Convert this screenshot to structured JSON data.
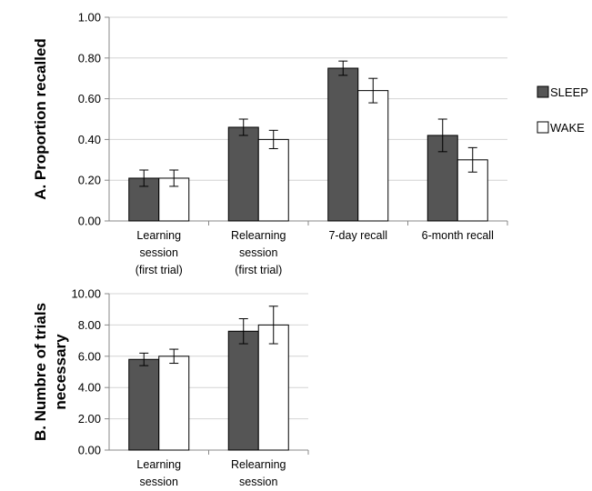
{
  "chart_data": [
    {
      "type": "bar",
      "ylabel": "A. Proportion recalled",
      "ylim": [
        0,
        1
      ],
      "yticks": [
        "0.00",
        "0.20",
        "0.40",
        "0.60",
        "0.80",
        "1.00"
      ],
      "grid": true,
      "legend_position": "right",
      "categories": [
        [
          "Learning",
          "session",
          "(first trial)"
        ],
        [
          "Relearning",
          "session",
          "(first trial)"
        ],
        [
          "7-day recall"
        ],
        [
          "6-month recall"
        ]
      ],
      "series": [
        {
          "name": "SLEEP",
          "color": "#555555",
          "values": [
            0.21,
            0.46,
            0.75,
            0.42
          ],
          "errors": [
            0.04,
            0.04,
            0.035,
            0.08
          ]
        },
        {
          "name": "WAKE",
          "color": "#ffffff",
          "values": [
            0.21,
            0.4,
            0.64,
            0.3
          ],
          "errors": [
            0.04,
            0.045,
            0.06,
            0.06
          ]
        }
      ]
    },
    {
      "type": "bar",
      "ylabel": [
        "B. Numbre of trials",
        "necessary"
      ],
      "ylim": [
        0,
        10
      ],
      "yticks": [
        "0.00",
        "2.00",
        "4.00",
        "6.00",
        "8.00",
        "10.00"
      ],
      "grid": true,
      "categories": [
        [
          "Learning",
          "session"
        ],
        [
          "Relearning",
          "session"
        ]
      ],
      "series": [
        {
          "name": "SLEEP",
          "color": "#555555",
          "values": [
            5.8,
            7.6
          ],
          "errors": [
            0.4,
            0.8
          ]
        },
        {
          "name": "WAKE",
          "color": "#ffffff",
          "values": [
            6.0,
            8.0
          ],
          "errors": [
            0.45,
            1.2
          ]
        }
      ]
    }
  ]
}
